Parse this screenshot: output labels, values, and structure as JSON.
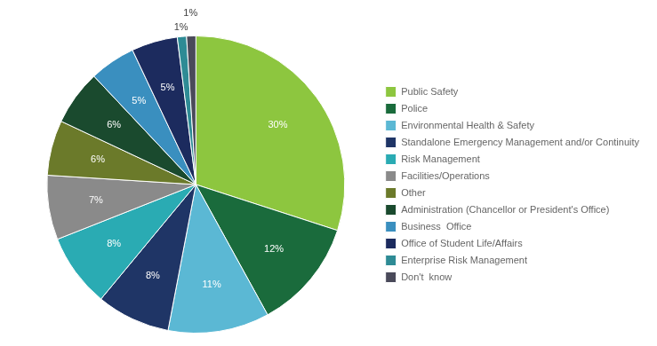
{
  "chart_data": {
    "type": "pie",
    "categories": [
      "Public Safety",
      "Police",
      "Environmental Health & Safety",
      "Standalone Emergency Management and/or Continuity",
      "Risk Management",
      "Facilities/Operations",
      "Other",
      "Administration (Chancellor or President's Office)",
      "Business  Office",
      "Office of Student Life/Affairs",
      "Enterprise Risk Management",
      "Don't  know"
    ],
    "values": [
      30,
      12,
      11,
      8,
      8,
      7,
      6,
      6,
      5,
      5,
      1,
      1
    ],
    "value_labels": [
      "30%",
      "12%",
      "11%",
      "8%",
      "8%",
      "7%",
      "6%",
      "6%",
      "5%",
      "5%",
      "1%",
      "1%"
    ],
    "colors": [
      "#8DC63F",
      "#1A6B3C",
      "#5BB8D4",
      "#1F3566",
      "#2AABB3",
      "#8A8A8A",
      "#6B7A2A",
      "#1A4A2E",
      "#3A8FBF",
      "#1C2B5E",
      "#2E8B95",
      "#4A4A5A"
    ],
    "data_labels": true,
    "legend": "right"
  }
}
